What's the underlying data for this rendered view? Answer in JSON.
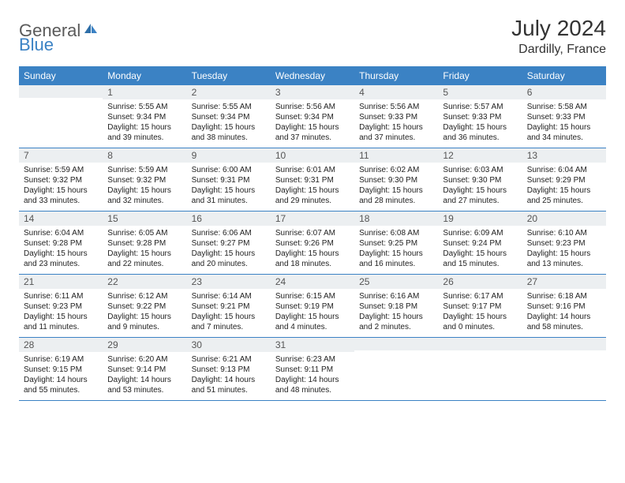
{
  "colors": {
    "brand_blue": "#3b82c4",
    "logo_gray": "#5a5a5a",
    "daynum_bg": "#eceff1",
    "text": "#222222",
    "rule": "#3b82c4",
    "bg": "#ffffff"
  },
  "logo": {
    "word1": "General",
    "word2": "Blue"
  },
  "title": "July 2024",
  "location": "Dardilly, France",
  "dow": [
    "Sunday",
    "Monday",
    "Tuesday",
    "Wednesday",
    "Thursday",
    "Friday",
    "Saturday"
  ],
  "weeks": [
    [
      {
        "n": "",
        "lines": []
      },
      {
        "n": "1",
        "lines": [
          "Sunrise: 5:55 AM",
          "Sunset: 9:34 PM",
          "Daylight: 15 hours and 39 minutes."
        ]
      },
      {
        "n": "2",
        "lines": [
          "Sunrise: 5:55 AM",
          "Sunset: 9:34 PM",
          "Daylight: 15 hours and 38 minutes."
        ]
      },
      {
        "n": "3",
        "lines": [
          "Sunrise: 5:56 AM",
          "Sunset: 9:34 PM",
          "Daylight: 15 hours and 37 minutes."
        ]
      },
      {
        "n": "4",
        "lines": [
          "Sunrise: 5:56 AM",
          "Sunset: 9:33 PM",
          "Daylight: 15 hours and 37 minutes."
        ]
      },
      {
        "n": "5",
        "lines": [
          "Sunrise: 5:57 AM",
          "Sunset: 9:33 PM",
          "Daylight: 15 hours and 36 minutes."
        ]
      },
      {
        "n": "6",
        "lines": [
          "Sunrise: 5:58 AM",
          "Sunset: 9:33 PM",
          "Daylight: 15 hours and 34 minutes."
        ]
      }
    ],
    [
      {
        "n": "7",
        "lines": [
          "Sunrise: 5:59 AM",
          "Sunset: 9:32 PM",
          "Daylight: 15 hours and 33 minutes."
        ]
      },
      {
        "n": "8",
        "lines": [
          "Sunrise: 5:59 AM",
          "Sunset: 9:32 PM",
          "Daylight: 15 hours and 32 minutes."
        ]
      },
      {
        "n": "9",
        "lines": [
          "Sunrise: 6:00 AM",
          "Sunset: 9:31 PM",
          "Daylight: 15 hours and 31 minutes."
        ]
      },
      {
        "n": "10",
        "lines": [
          "Sunrise: 6:01 AM",
          "Sunset: 9:31 PM",
          "Daylight: 15 hours and 29 minutes."
        ]
      },
      {
        "n": "11",
        "lines": [
          "Sunrise: 6:02 AM",
          "Sunset: 9:30 PM",
          "Daylight: 15 hours and 28 minutes."
        ]
      },
      {
        "n": "12",
        "lines": [
          "Sunrise: 6:03 AM",
          "Sunset: 9:30 PM",
          "Daylight: 15 hours and 27 minutes."
        ]
      },
      {
        "n": "13",
        "lines": [
          "Sunrise: 6:04 AM",
          "Sunset: 9:29 PM",
          "Daylight: 15 hours and 25 minutes."
        ]
      }
    ],
    [
      {
        "n": "14",
        "lines": [
          "Sunrise: 6:04 AM",
          "Sunset: 9:28 PM",
          "Daylight: 15 hours and 23 minutes."
        ]
      },
      {
        "n": "15",
        "lines": [
          "Sunrise: 6:05 AM",
          "Sunset: 9:28 PM",
          "Daylight: 15 hours and 22 minutes."
        ]
      },
      {
        "n": "16",
        "lines": [
          "Sunrise: 6:06 AM",
          "Sunset: 9:27 PM",
          "Daylight: 15 hours and 20 minutes."
        ]
      },
      {
        "n": "17",
        "lines": [
          "Sunrise: 6:07 AM",
          "Sunset: 9:26 PM",
          "Daylight: 15 hours and 18 minutes."
        ]
      },
      {
        "n": "18",
        "lines": [
          "Sunrise: 6:08 AM",
          "Sunset: 9:25 PM",
          "Daylight: 15 hours and 16 minutes."
        ]
      },
      {
        "n": "19",
        "lines": [
          "Sunrise: 6:09 AM",
          "Sunset: 9:24 PM",
          "Daylight: 15 hours and 15 minutes."
        ]
      },
      {
        "n": "20",
        "lines": [
          "Sunrise: 6:10 AM",
          "Sunset: 9:23 PM",
          "Daylight: 15 hours and 13 minutes."
        ]
      }
    ],
    [
      {
        "n": "21",
        "lines": [
          "Sunrise: 6:11 AM",
          "Sunset: 9:23 PM",
          "Daylight: 15 hours and 11 minutes."
        ]
      },
      {
        "n": "22",
        "lines": [
          "Sunrise: 6:12 AM",
          "Sunset: 9:22 PM",
          "Daylight: 15 hours and 9 minutes."
        ]
      },
      {
        "n": "23",
        "lines": [
          "Sunrise: 6:14 AM",
          "Sunset: 9:21 PM",
          "Daylight: 15 hours and 7 minutes."
        ]
      },
      {
        "n": "24",
        "lines": [
          "Sunrise: 6:15 AM",
          "Sunset: 9:19 PM",
          "Daylight: 15 hours and 4 minutes."
        ]
      },
      {
        "n": "25",
        "lines": [
          "Sunrise: 6:16 AM",
          "Sunset: 9:18 PM",
          "Daylight: 15 hours and 2 minutes."
        ]
      },
      {
        "n": "26",
        "lines": [
          "Sunrise: 6:17 AM",
          "Sunset: 9:17 PM",
          "Daylight: 15 hours and 0 minutes."
        ]
      },
      {
        "n": "27",
        "lines": [
          "Sunrise: 6:18 AM",
          "Sunset: 9:16 PM",
          "Daylight: 14 hours and 58 minutes."
        ]
      }
    ],
    [
      {
        "n": "28",
        "lines": [
          "Sunrise: 6:19 AM",
          "Sunset: 9:15 PM",
          "Daylight: 14 hours and 55 minutes."
        ]
      },
      {
        "n": "29",
        "lines": [
          "Sunrise: 6:20 AM",
          "Sunset: 9:14 PM",
          "Daylight: 14 hours and 53 minutes."
        ]
      },
      {
        "n": "30",
        "lines": [
          "Sunrise: 6:21 AM",
          "Sunset: 9:13 PM",
          "Daylight: 14 hours and 51 minutes."
        ]
      },
      {
        "n": "31",
        "lines": [
          "Sunrise: 6:23 AM",
          "Sunset: 9:11 PM",
          "Daylight: 14 hours and 48 minutes."
        ]
      },
      {
        "n": "",
        "lines": []
      },
      {
        "n": "",
        "lines": []
      },
      {
        "n": "",
        "lines": []
      }
    ]
  ]
}
